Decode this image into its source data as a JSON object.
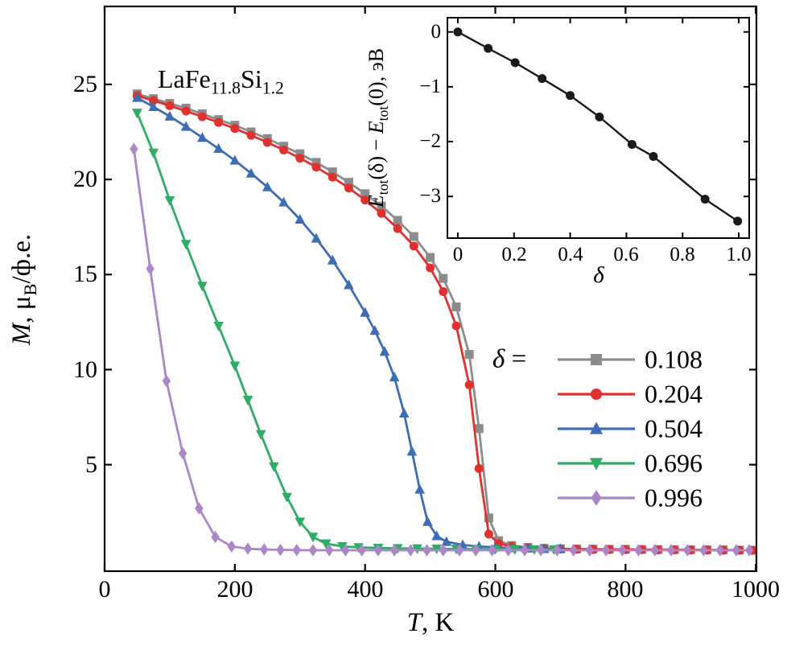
{
  "figure": {
    "background": "#ffffff",
    "annotation_text": "LaFe11.8Si1.2",
    "annotation": {
      "prefix": "LaFe",
      "sub1": "11.8",
      "mid": "Si",
      "sub2": "1.2"
    }
  },
  "chart_data": [
    {
      "type": "line",
      "name": "magnetization-vs-temperature",
      "title": "",
      "xlabel_text": "T, K",
      "ylabel_text": "M, μB/ф.е.",
      "xlabel": {
        "italic": "T",
        "rest": ", K"
      },
      "ylabel": {
        "italic": "M",
        "rest1": ", μ",
        "sub": "B",
        "rest2": "/ф.е."
      },
      "xlim": [
        0,
        1001
      ],
      "ylim": [
        -0.6,
        29.1
      ],
      "grid": false,
      "xticks": [
        0,
        200,
        400,
        600,
        800,
        1000
      ],
      "xtick_labels": [
        "0",
        "200",
        "400",
        "600",
        "800",
        "1000"
      ],
      "yticks": [
        5,
        10,
        15,
        20,
        25
      ],
      "ytick_labels": [
        "5",
        "10",
        "15",
        "20",
        "25"
      ],
      "legend": {
        "title_text": "δ =",
        "symbol": "δ",
        "equals": " =",
        "position": "lower right"
      },
      "series": [
        {
          "name": "0.108",
          "color": "#8c8c8c",
          "marker": "square",
          "x": [
            50,
            75,
            100,
            125,
            150,
            175,
            200,
            225,
            250,
            275,
            300,
            325,
            350,
            375,
            400,
            425,
            450,
            475,
            500,
            520,
            540,
            560,
            575,
            590,
            605,
            625,
            650,
            675,
            700,
            725,
            750,
            775,
            800,
            825,
            850,
            875,
            900,
            925,
            950,
            975,
            995
          ],
          "y": [
            24.5,
            24.25,
            24.0,
            23.75,
            23.45,
            23.15,
            22.85,
            22.5,
            22.15,
            21.75,
            21.35,
            20.9,
            20.4,
            19.85,
            19.25,
            18.6,
            17.85,
            17.0,
            15.9,
            14.8,
            13.3,
            10.8,
            6.9,
            2.2,
            1.0,
            0.75,
            0.65,
            0.6,
            0.58,
            0.57,
            0.56,
            0.55,
            0.55,
            0.54,
            0.54,
            0.53,
            0.53,
            0.52,
            0.52,
            0.51,
            0.5
          ]
        },
        {
          "name": "0.204",
          "color": "#e0312f",
          "marker": "circle",
          "x": [
            50,
            75,
            100,
            125,
            150,
            175,
            200,
            225,
            250,
            275,
            300,
            325,
            350,
            375,
            400,
            425,
            450,
            475,
            500,
            520,
            540,
            560,
            575,
            590,
            605,
            625,
            650,
            675,
            700,
            725,
            750,
            775,
            800,
            825,
            850,
            875,
            900,
            925,
            950,
            975,
            995
          ],
          "y": [
            24.4,
            24.15,
            23.88,
            23.6,
            23.3,
            23.0,
            22.68,
            22.32,
            21.95,
            21.55,
            21.12,
            20.65,
            20.12,
            19.55,
            18.92,
            18.22,
            17.42,
            16.5,
            15.35,
            14.1,
            12.3,
            9.2,
            4.8,
            1.35,
            0.85,
            0.7,
            0.62,
            0.58,
            0.56,
            0.55,
            0.54,
            0.54,
            0.53,
            0.53,
            0.52,
            0.52,
            0.51,
            0.51,
            0.5,
            0.5,
            0.5
          ]
        },
        {
          "name": "0.504",
          "color": "#3d6eb5",
          "marker": "triangle-up",
          "x": [
            50,
            75,
            100,
            125,
            150,
            175,
            200,
            225,
            250,
            275,
            300,
            325,
            350,
            375,
            400,
            415,
            430,
            445,
            460,
            472,
            484,
            496,
            510,
            525,
            550,
            575,
            600,
            625,
            650,
            675,
            700
          ],
          "y": [
            24.3,
            23.82,
            23.32,
            22.78,
            22.2,
            21.62,
            21.0,
            20.32,
            19.6,
            18.8,
            17.9,
            16.9,
            15.75,
            14.45,
            13.0,
            12.05,
            10.95,
            9.6,
            7.7,
            5.7,
            3.7,
            2.0,
            1.25,
            0.95,
            0.78,
            0.7,
            0.65,
            0.62,
            0.6,
            0.58,
            0.57
          ]
        },
        {
          "name": "0.696",
          "color": "#2fac66",
          "marker": "triangle-down",
          "x": [
            50,
            75,
            100,
            125,
            150,
            175,
            200,
            220,
            240,
            260,
            280,
            300,
            320,
            340,
            365,
            390,
            420,
            450,
            480,
            510,
            540,
            570,
            600,
            630,
            660,
            690
          ],
          "y": [
            23.5,
            21.4,
            18.9,
            16.6,
            14.4,
            12.3,
            10.2,
            8.4,
            6.6,
            4.9,
            3.3,
            2.0,
            1.2,
            0.85,
            0.7,
            0.65,
            0.62,
            0.6,
            0.59,
            0.58,
            0.57,
            0.56,
            0.55,
            0.55,
            0.54,
            0.54
          ]
        },
        {
          "name": "0.996",
          "color": "#ad85c9",
          "marker": "diamond",
          "x": [
            45,
            70,
            95,
            120,
            145,
            170,
            195,
            220,
            245,
            270,
            295,
            320,
            345,
            370,
            395,
            420,
            445,
            470,
            495,
            520,
            545,
            570,
            595,
            620,
            645,
            670,
            695,
            720,
            745,
            770,
            795,
            820,
            845,
            870,
            895,
            920,
            945,
            970,
            990
          ],
          "y": [
            21.6,
            15.3,
            9.4,
            5.6,
            2.7,
            1.2,
            0.7,
            0.58,
            0.54,
            0.52,
            0.51,
            0.5,
            0.5,
            0.5,
            0.5,
            0.5,
            0.5,
            0.5,
            0.5,
            0.5,
            0.5,
            0.5,
            0.5,
            0.5,
            0.5,
            0.5,
            0.5,
            0.5,
            0.5,
            0.5,
            0.5,
            0.5,
            0.5,
            0.5,
            0.5,
            0.5,
            0.5,
            0.5,
            0.5
          ]
        }
      ]
    },
    {
      "type": "line",
      "name": "inset-total-energy-vs-delta",
      "title": "",
      "xlabel_text": "δ",
      "ylabel_text": "Etot(δ) − Etot(0), эВ",
      "xlabel": {
        "symbol": "δ"
      },
      "ylabel": {
        "e1": "E",
        "sub1": "tot",
        "mid": "(δ) − ",
        "e2": "E",
        "sub2": "tot",
        "end": "(0), эВ"
      },
      "xlim": [
        -0.037,
        1.037
      ],
      "ylim": [
        -3.76,
        0.26
      ],
      "grid": false,
      "xticks": [
        0,
        0.2,
        0.4,
        0.6,
        0.8,
        1.0
      ],
      "xtick_labels": [
        "0",
        "0.2",
        "0.4",
        "0.6",
        "0.8",
        "1.0"
      ],
      "yticks": [
        0,
        -1,
        -2,
        -3
      ],
      "ytick_labels": [
        "0",
        "−1",
        "−2",
        "−3"
      ],
      "series": [
        {
          "name": "Etot(δ) − Etot(0)",
          "color": "#1a1a1a",
          "marker": "circle",
          "x": [
            0,
            0.108,
            0.204,
            0.3,
            0.4,
            0.504,
            0.62,
            0.696,
            0.88,
            0.996
          ],
          "y": [
            0.0,
            -0.3,
            -0.56,
            -0.85,
            -1.16,
            -1.55,
            -2.05,
            -2.27,
            -3.05,
            -3.45
          ]
        }
      ]
    }
  ]
}
